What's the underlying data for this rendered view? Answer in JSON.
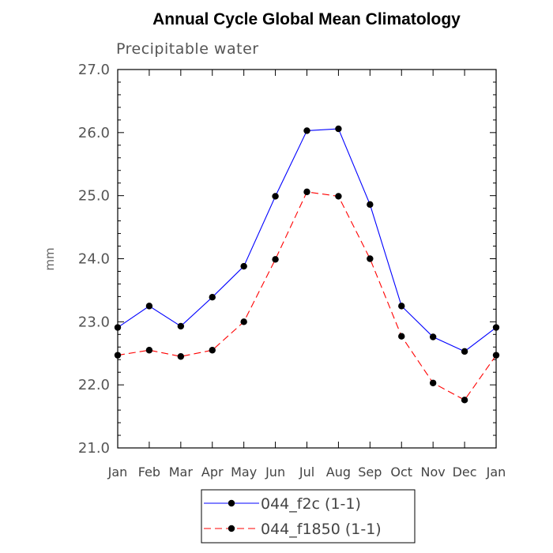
{
  "chart_data": {
    "type": "line",
    "title": "Annual Cycle Global Mean Climatology",
    "subtitle": "Precipitable water",
    "ylabel": "mm",
    "xlabel": "",
    "categories": [
      "Jan",
      "Feb",
      "Mar",
      "Apr",
      "May",
      "Jun",
      "Jul",
      "Aug",
      "Sep",
      "Oct",
      "Nov",
      "Dec",
      "Jan"
    ],
    "ylim": [
      21.0,
      27.0
    ],
    "yticks": [
      "21.0",
      "22.0",
      "23.0",
      "24.0",
      "25.0",
      "26.0",
      "27.0"
    ],
    "legend_position": "bottom",
    "series": [
      {
        "name": "044_f2c (1-1)",
        "color": "#0000ff",
        "dash": "solid",
        "values": [
          22.91,
          23.25,
          22.93,
          23.39,
          23.88,
          24.99,
          26.03,
          26.06,
          24.86,
          23.25,
          22.76,
          22.53,
          22.91
        ]
      },
      {
        "name": "044_f1850 (1-1)",
        "color": "#ff0000",
        "dash": "dashed",
        "values": [
          22.47,
          22.55,
          22.45,
          22.55,
          23.0,
          23.99,
          25.06,
          24.99,
          24.0,
          22.77,
          22.03,
          21.76,
          22.47
        ]
      }
    ]
  }
}
